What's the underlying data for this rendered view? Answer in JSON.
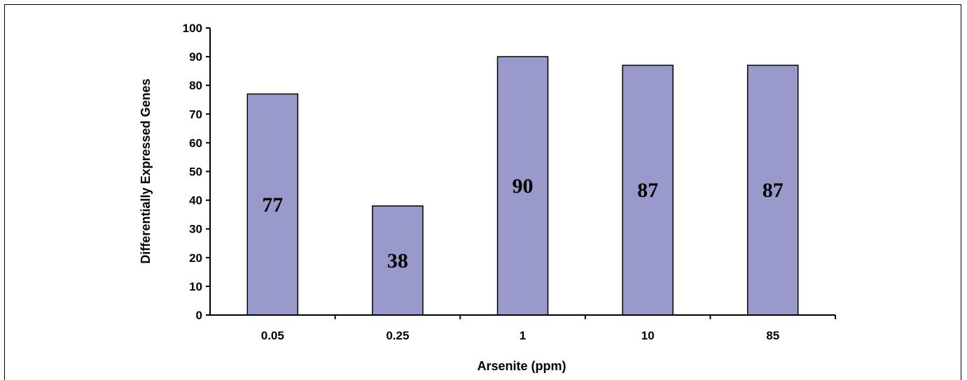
{
  "chart_data": {
    "type": "bar",
    "categories": [
      "0.05",
      "0.25",
      "1",
      "10",
      "85"
    ],
    "values": [
      77,
      38,
      90,
      87,
      87
    ],
    "data_labels": [
      "77",
      "38",
      "90",
      "87",
      "87"
    ],
    "title": "",
    "xlabel": "Arsenite (ppm)",
    "ylabel": "Differentially Expressed Genes",
    "ylim": [
      0,
      100
    ],
    "yticks": [
      "0",
      "10",
      "20",
      "30",
      "40",
      "50",
      "60",
      "70",
      "80",
      "90",
      "100"
    ],
    "grid": false,
    "legend": "none",
    "bar_color": "#9999cc",
    "bar_edge_color": "#000000"
  }
}
